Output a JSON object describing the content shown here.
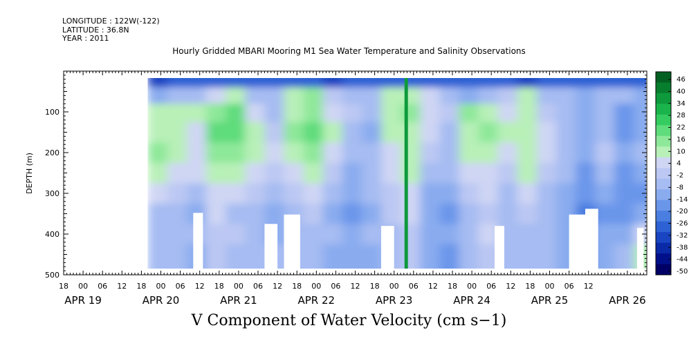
{
  "header": {
    "longitude": "LONGITUDE : 122W(-122)",
    "latitude": "LATITUDE : 36.8N",
    "year": "YEAR : 2011"
  },
  "chart_data": {
    "type": "heatmap",
    "title": "Hourly Gridded MBARI Mooring M1 Sea Water Temperature and Salinity Observations",
    "bottom_title": "V Component of Water Velocity (cm s−1)",
    "ylabel": "DEPTH (m)",
    "ylim": [
      500,
      0
    ],
    "y_ticks": [
      100,
      200,
      300,
      400,
      500
    ],
    "x_hour_labels": [
      "18",
      "00",
      "06",
      "12",
      "18",
      "00",
      "06",
      "12",
      "18",
      "00",
      "06",
      "12",
      "18",
      "00",
      "06",
      "12",
      "18",
      "00",
      "06",
      "12",
      "18",
      "00",
      "06",
      "12",
      "18",
      "00",
      "06",
      "12"
    ],
    "x_day_labels": [
      {
        "label": "APR 19",
        "day": 0
      },
      {
        "label": "APR 20",
        "day": 1
      },
      {
        "label": "APR 21",
        "day": 2
      },
      {
        "label": "APR 22",
        "day": 3
      },
      {
        "label": "APR 23",
        "day": 4
      },
      {
        "label": "APR 24",
        "day": 5
      },
      {
        "label": "APR 25",
        "day": 6
      },
      {
        "label": "APR 26",
        "day": 7
      }
    ],
    "colorbar": {
      "labels": [
        "46",
        "40",
        "34",
        "28",
        "22",
        "16",
        "10",
        "4",
        "-2",
        "-8",
        "-14",
        "-20",
        "-26",
        "-32",
        "-38",
        "-44",
        "-50"
      ],
      "min": -50,
      "max": 49,
      "colors": [
        "#000066",
        "#00108a",
        "#0a2aa8",
        "#1a45c2",
        "#2e62d4",
        "#4a7ee0",
        "#6a96ea",
        "#8aacef",
        "#a6bcf2",
        "#bcc8f3",
        "#cfd6f4",
        "#b8f0b8",
        "#8ee89a",
        "#5fdc7c",
        "#34cc60",
        "#1ab44c",
        "#0e9a3c",
        "#077e2e",
        "#036022"
      ]
    },
    "data_range": {
      "start": "APR 19 23:00",
      "end": "APR 26 17:00"
    },
    "series": [
      {
        "depth": 20,
        "v": [
          -30,
          -28,
          -26,
          -25,
          -27,
          -29,
          -26,
          -24,
          -28,
          -30,
          -27,
          -25,
          -26,
          -28,
          -29,
          -26,
          -24,
          -27,
          -29,
          -31,
          -28,
          -26,
          -25,
          -27,
          -29,
          -28,
          -26,
          -24
        ]
      },
      {
        "depth": 60,
        "v": [
          -12,
          -8,
          -6,
          6,
          8,
          -4,
          -6,
          10,
          14,
          -2,
          -8,
          -6,
          8,
          12,
          4,
          -4,
          -10,
          -6,
          2,
          8,
          -4,
          -8,
          -12,
          -6,
          -8,
          -10,
          -6,
          -12
        ]
      },
      {
        "depth": 100,
        "v": [
          10,
          12,
          8,
          14,
          18,
          6,
          -4,
          12,
          16,
          6,
          -2,
          -8,
          10,
          14,
          6,
          -2,
          14,
          10,
          6,
          8,
          2,
          -4,
          -10,
          -8,
          -14,
          -12,
          -6,
          -10
        ]
      },
      {
        "depth": 150,
        "v": [
          12,
          10,
          6,
          18,
          20,
          8,
          -2,
          14,
          18,
          8,
          -4,
          -10,
          8,
          12,
          4,
          -6,
          12,
          14,
          8,
          10,
          4,
          -6,
          -12,
          -6,
          -14,
          -10,
          -4,
          -8
        ]
      },
      {
        "depth": 200,
        "v": [
          14,
          8,
          6,
          16,
          14,
          10,
          4,
          12,
          14,
          4,
          -6,
          -8,
          6,
          10,
          2,
          -4,
          8,
          10,
          6,
          12,
          6,
          -4,
          -10,
          -2,
          -12,
          -8,
          -2,
          -6
        ]
      },
      {
        "depth": 250,
        "v": [
          8,
          6,
          4,
          10,
          8,
          6,
          -2,
          6,
          8,
          -2,
          -10,
          -6,
          4,
          8,
          -6,
          -8,
          4,
          6,
          -2,
          8,
          2,
          -8,
          -14,
          -6,
          -16,
          -12,
          -6,
          -10
        ]
      },
      {
        "depth": 300,
        "v": [
          4,
          -2,
          -6,
          6,
          4,
          -2,
          -8,
          2,
          4,
          -6,
          -12,
          -8,
          2,
          6,
          -10,
          -12,
          -2,
          4,
          -6,
          4,
          -4,
          -10,
          -16,
          -10,
          -18,
          -14,
          -8,
          -12
        ]
      },
      {
        "depth": 350,
        "v": [
          -6,
          -8,
          -10,
          4,
          -4,
          -6,
          -12,
          -4,
          -2,
          -10,
          -14,
          -10,
          -2,
          4,
          -12,
          -14,
          -6,
          2,
          -8,
          -2,
          -8,
          -12,
          -20,
          -14,
          -16,
          -12,
          -10,
          -14
        ]
      },
      {
        "depth": 400,
        "v": [
          -4,
          -6,
          -8,
          2,
          -2,
          -4,
          -10,
          -6,
          -4,
          -8,
          -12,
          -8,
          -4,
          2,
          -10,
          -12,
          -4,
          4,
          -6,
          -4,
          -6,
          -10,
          -16,
          -12,
          -10,
          6,
          -8,
          -12
        ]
      },
      {
        "depth": 450,
        "v": [
          -6,
          -8,
          -10,
          -2,
          -4,
          -6,
          -8,
          -8,
          -6,
          -10,
          -12,
          -10,
          -6,
          0,
          -12,
          -14,
          -6,
          2,
          -8,
          -6,
          -8,
          -12,
          -14,
          -10,
          -8,
          8,
          -10,
          -12
        ]
      }
    ],
    "grid": false
  }
}
